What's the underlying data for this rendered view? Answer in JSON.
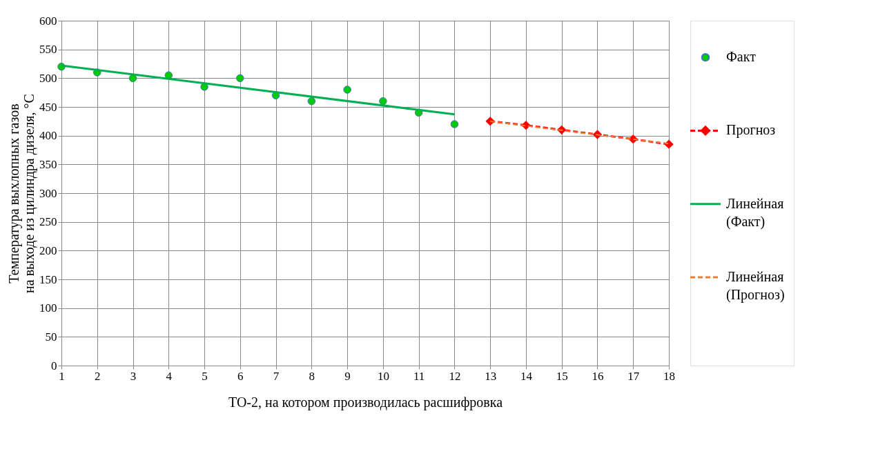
{
  "chart_data": {
    "type": "scatter",
    "xlabel": "ТО-2, на котором производилась расшифровка",
    "ylabel": "Температура выхлопных газов на выходе из цилиндра дизеля, °С",
    "xlim": [
      1,
      18
    ],
    "xticks": [
      1,
      2,
      3,
      4,
      5,
      6,
      7,
      8,
      9,
      10,
      11,
      12,
      13,
      14,
      15,
      16,
      17,
      18
    ],
    "ylim": [
      0,
      600
    ],
    "yticks": [
      0,
      50,
      100,
      150,
      200,
      250,
      300,
      350,
      400,
      450,
      500,
      550,
      600
    ],
    "grid": true,
    "legend": "right",
    "series": [
      {
        "name": "Факт",
        "marker": "circle",
        "color": "#00cc00",
        "x": [
          1,
          2,
          3,
          4,
          5,
          6,
          7,
          8,
          9,
          10,
          11,
          12
        ],
        "values": [
          520,
          510,
          500,
          505,
          485,
          500,
          470,
          460,
          480,
          460,
          440,
          420
        ]
      },
      {
        "name": "Прогноз",
        "type": "line",
        "marker": "diamond",
        "line_style": "dashed",
        "color": "#ff0000",
        "x": [
          13,
          14,
          15,
          16,
          17,
          18
        ],
        "values": [
          425,
          418,
          410,
          402,
          394,
          385
        ]
      },
      {
        "name": "Линейная (Факт)",
        "type": "line",
        "marker": "none",
        "line_style": "solid",
        "color": "#00b050",
        "x": [
          1,
          12
        ],
        "values": [
          522,
          437
        ]
      },
      {
        "name": "Линейная (Прогноз)",
        "type": "line",
        "marker": "none",
        "line_style": "dashed",
        "color": "#ed7d31",
        "x": [
          13,
          18
        ],
        "values": [
          425,
          386
        ]
      }
    ]
  }
}
